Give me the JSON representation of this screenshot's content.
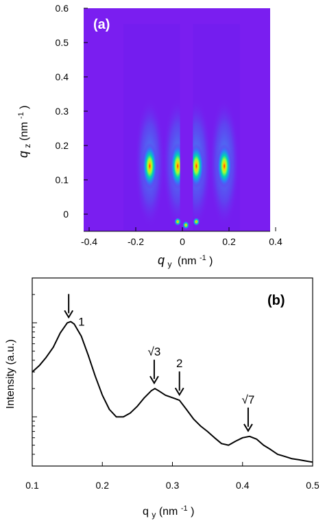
{
  "chart_data": [
    {
      "type": "heatmap",
      "panel_label": "(a)",
      "xlabel_main": "q",
      "xlabel_sub": "y",
      "xlabel_unit": "(nm",
      "xlabel_exp": "-1",
      "xlabel_close": ")",
      "ylabel_main": "q",
      "ylabel_sub": "z",
      "ylabel_unit": "(nm",
      "ylabel_exp": "-1",
      "ylabel_close": ")",
      "xlim": [
        -0.4,
        0.4
      ],
      "ylim": [
        -0.05,
        0.6
      ],
      "x_ticks": [
        {
          "value": -0.4,
          "label": "-0.4"
        },
        {
          "value": -0.2,
          "label": "-0.2"
        },
        {
          "value": 0.0,
          "label": "0"
        },
        {
          "value": 0.2,
          "label": "0.2"
        },
        {
          "value": 0.4,
          "label": "0.4"
        }
      ],
      "y_ticks": [
        {
          "value": 0.0,
          "label": "0"
        },
        {
          "value": 0.1,
          "label": "0.1"
        },
        {
          "value": 0.2,
          "label": "0.2"
        },
        {
          "value": 0.3,
          "label": "0.3"
        },
        {
          "value": 0.4,
          "label": "0.4"
        },
        {
          "value": 0.5,
          "label": "0.5"
        },
        {
          "value": 0.6,
          "label": "0.6"
        }
      ],
      "background_color": "#7a1ef0",
      "spots": [
        {
          "qy": -0.14,
          "qz": 0.14,
          "intensity": 1.0
        },
        {
          "qy": -0.02,
          "qz": 0.14,
          "intensity": 1.0
        },
        {
          "qy": 0.06,
          "qz": 0.14,
          "intensity": 0.95
        },
        {
          "qy": 0.18,
          "qz": 0.14,
          "intensity": 0.95
        }
      ],
      "beamstop": {
        "qy_min": -0.01,
        "qy_max": 0.045
      }
    },
    {
      "type": "line",
      "panel_label": "(b)",
      "xlabel_main": "q",
      "xlabel_sub": "y",
      "xlabel_unit": " (nm",
      "xlabel_exp": "-1",
      "xlabel_close": ")",
      "ylabel": "Intensity (a.u.)",
      "xlim": [
        0.1,
        0.5
      ],
      "y_scale": "log",
      "x_ticks": [
        {
          "value": 0.1,
          "label": "0.1"
        },
        {
          "value": 0.2,
          "label": "0.2"
        },
        {
          "value": 0.3,
          "label": "0.3"
        },
        {
          "value": 0.4,
          "label": "0.4"
        },
        {
          "value": 0.5,
          "label": "0.5"
        }
      ],
      "series": [
        {
          "x": [
            0.1,
            0.11,
            0.12,
            0.13,
            0.14,
            0.15,
            0.155,
            0.16,
            0.17,
            0.18,
            0.19,
            0.2,
            0.21,
            0.22,
            0.23,
            0.24,
            0.25,
            0.26,
            0.27,
            0.275,
            0.28,
            0.29,
            0.3,
            0.31,
            0.32,
            0.33,
            0.34,
            0.35,
            0.36,
            0.37,
            0.38,
            0.39,
            0.4,
            0.41,
            0.42,
            0.43,
            0.44,
            0.45,
            0.46,
            0.47,
            0.48,
            0.49,
            0.5
          ],
          "y": [
            0.3,
            0.35,
            0.43,
            0.55,
            0.78,
            1.0,
            1.03,
            0.97,
            0.72,
            0.45,
            0.27,
            0.17,
            0.12,
            0.1,
            0.1,
            0.11,
            0.13,
            0.16,
            0.19,
            0.2,
            0.19,
            0.17,
            0.16,
            0.15,
            0.12,
            0.095,
            0.08,
            0.07,
            0.06,
            0.052,
            0.05,
            0.055,
            0.06,
            0.062,
            0.058,
            0.05,
            0.045,
            0.04,
            0.038,
            0.036,
            0.035,
            0.034,
            0.033
          ]
        }
      ],
      "annotations": [
        {
          "label": "1",
          "x": 0.152
        },
        {
          "label": "√3",
          "x": 0.274
        },
        {
          "label": "2",
          "x": 0.31
        },
        {
          "label": "√7",
          "x": 0.408
        }
      ]
    }
  ]
}
